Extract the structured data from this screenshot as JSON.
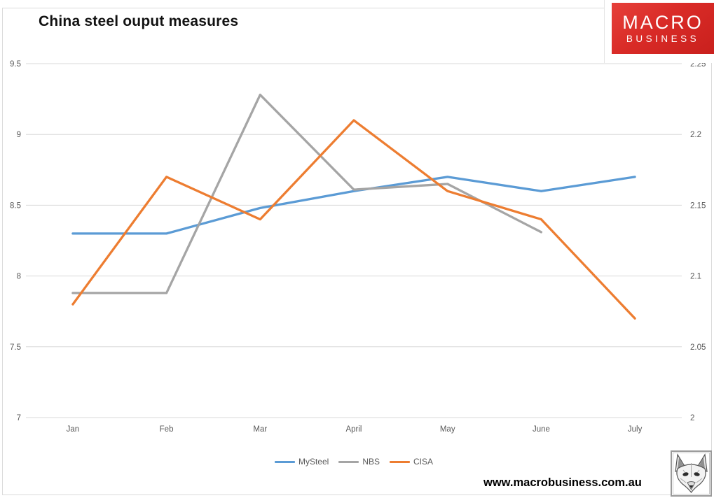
{
  "logo": {
    "line1": "MACRO",
    "line2": "BUSINESS"
  },
  "footer": {
    "url": "www.macrobusiness.com.au",
    "fox_icon": "fox-sketch-icon"
  },
  "chart_data": {
    "type": "line",
    "title": "China steel ouput measures",
    "categories": [
      "Jan",
      "Feb",
      "Mar",
      "April",
      "May",
      "June",
      "July"
    ],
    "series": [
      {
        "name": "MySteel",
        "color": "#5B9BD5",
        "axis": "left",
        "values": [
          8.3,
          8.3,
          8.48,
          8.6,
          8.7,
          8.6,
          8.7
        ]
      },
      {
        "name": "NBS",
        "color": "#A5A5A5",
        "axis": "left",
        "values": [
          7.88,
          7.88,
          9.28,
          8.61,
          8.65,
          8.31,
          null
        ]
      },
      {
        "name": "CISA",
        "color": "#ED7D31",
        "axis": "right",
        "values": [
          2.08,
          2.17,
          2.14,
          2.21,
          2.16,
          2.14,
          2.07
        ]
      }
    ],
    "left_axis": {
      "ticks": [
        "9.5",
        "9",
        "8.5",
        "8",
        "7.5",
        "7"
      ],
      "min": 7,
      "max": 9.5
    },
    "right_axis": {
      "ticks": [
        "2.25",
        "2.2",
        "2.15",
        "2.1",
        "2.05",
        "2"
      ],
      "min": 2,
      "max": 2.25
    },
    "grid": true,
    "gridline_color": "#d8d8d8",
    "legend_position": "bottom"
  }
}
